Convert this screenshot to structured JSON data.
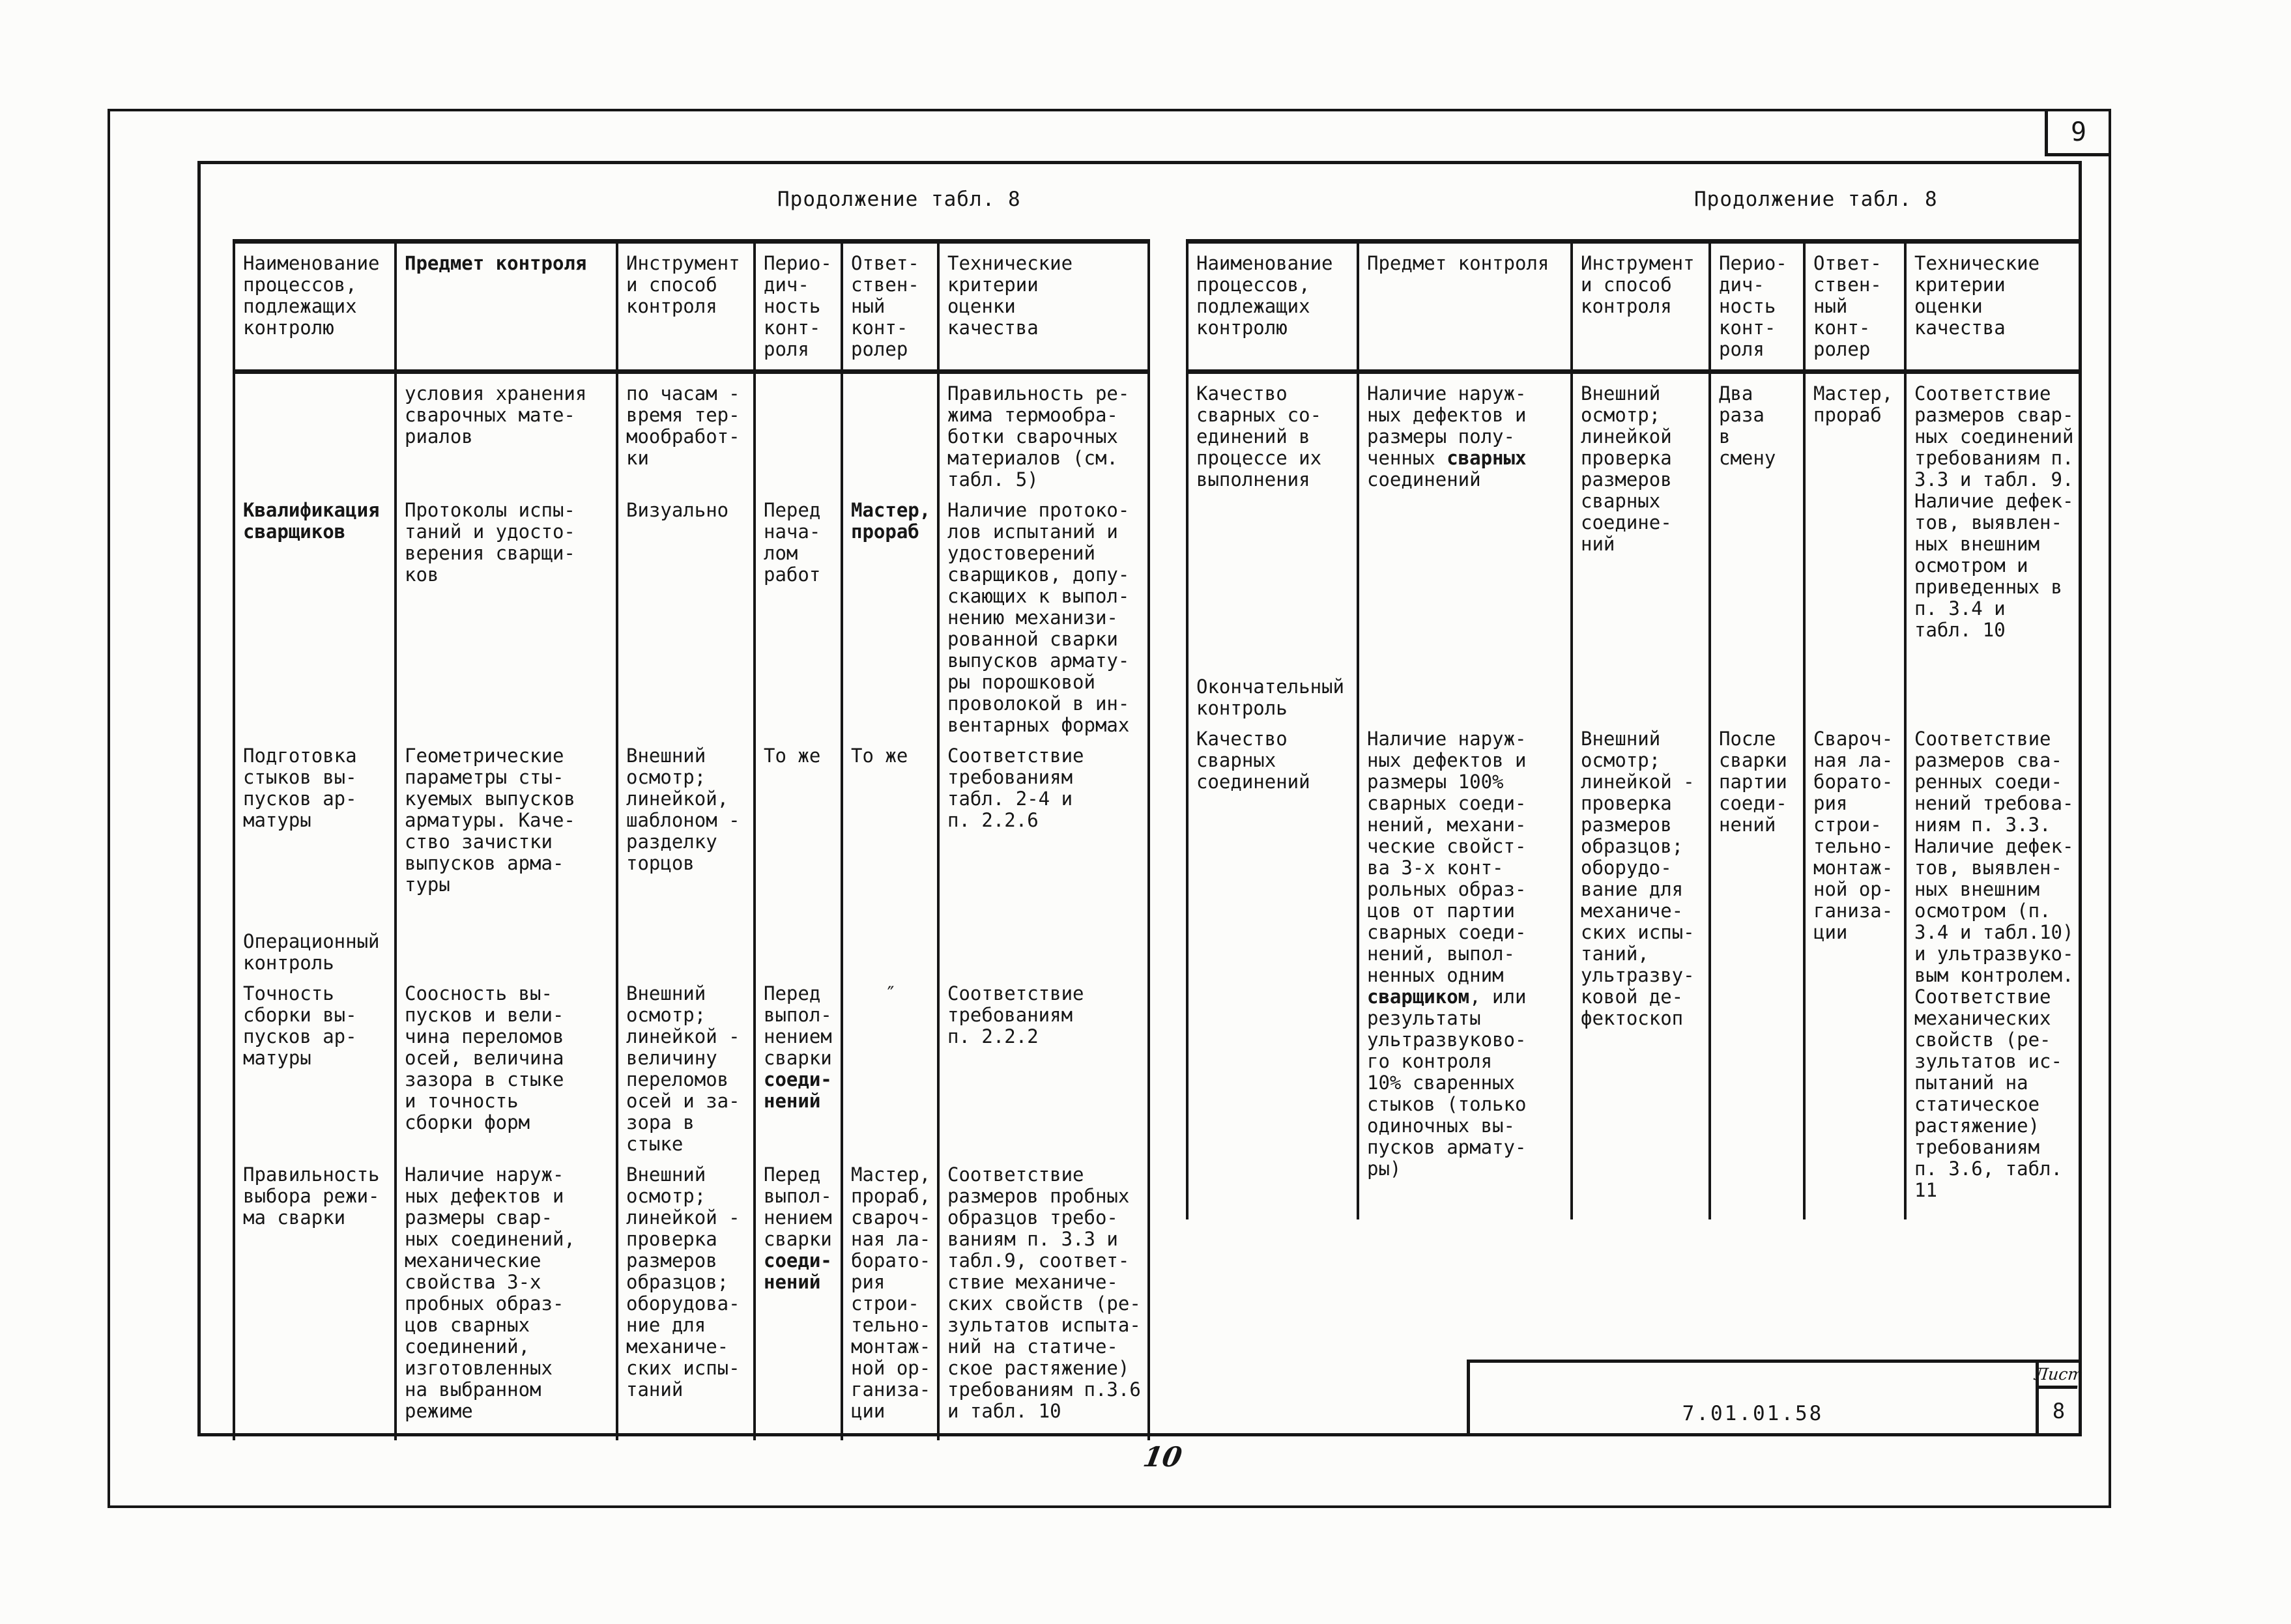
{
  "page": {
    "corner_page_number": "9",
    "bottom_page_number": "10",
    "stamp": {
      "code": "7.01.01.58",
      "sheet_label": "Лист",
      "sheet_number": "8"
    }
  },
  "left_table": {
    "title": "Продолжение табл. 8",
    "header": [
      [
        "Наименование",
        "процессов,",
        "подлежащих",
        "контролю"
      ],
      [
        "**Предмет контроля**"
      ],
      [
        "Инструмент",
        "и способ",
        "контроля"
      ],
      [
        "Перио-",
        "дич-",
        "ность",
        "конт-",
        "роля"
      ],
      [
        "Ответ-",
        "ствен-",
        "ный",
        "конт-",
        "ролер"
      ],
      [
        "Технические",
        "критерии",
        "оценки",
        "качества"
      ]
    ],
    "rows": [
      {
        "cells": [
          [],
          [
            "условия хранения",
            "сварочных мате-",
            "риалов"
          ],
          [
            "по часам -",
            "время тер-",
            "мообработ-",
            "ки"
          ],
          [],
          [],
          [
            "Правильность ре-",
            "жима термообра-",
            "ботки сварочных",
            "материалов (см.",
            "табл. 5)"
          ]
        ]
      },
      {
        "cells": [
          [
            "**Квалификация**",
            "**сварщиков**"
          ],
          [
            "Протоколы испы-",
            "таний и удосто-",
            "верения сварщи-",
            "ков"
          ],
          [
            "Визуально"
          ],
          [
            "Перед",
            "нача-",
            "лом",
            "работ"
          ],
          [
            "**Мастер,**",
            "**прораб**"
          ],
          [
            "Наличие протоко-",
            "лов испытаний и",
            "удостоверений",
            "сварщиков, допу-",
            "скающих к выпол-",
            "нению механизи-",
            "рованной сварки",
            "выпусков армату-",
            "ры порошковой",
            "проволокой в ин-",
            "вентарных формах"
          ]
        ]
      },
      {
        "cells": [
          [
            "Подготовка",
            "стыков вы-",
            "пусков ар-",
            "матуры"
          ],
          [
            "Геометрические",
            "параметры сты-",
            "куемых выпусков",
            "арматуры. Каче-",
            "ство зачистки",
            "выпусков арма-",
            "туры"
          ],
          [
            "Внешний",
            "осмотр;",
            "линейкой,",
            "шаблоном -",
            "разделку",
            "торцов"
          ],
          [
            "То же"
          ],
          [
            "То же"
          ],
          [
            "Соответствие",
            "требованиям",
            "табл. 2-4 и",
            "п. 2.2.6"
          ]
        ]
      },
      {
        "section": true,
        "cells": [
          [
            "Операционный",
            "контроль"
          ],
          [],
          [],
          [],
          [],
          []
        ]
      },
      {
        "cells": [
          [
            "Точность",
            "сборки вы-",
            "пусков ар-",
            "матуры"
          ],
          [
            "Соосность вы-",
            "пусков и вели-",
            "чина переломов",
            "осей, величина",
            "зазора в стыке",
            "и точность",
            "сборки форм"
          ],
          [
            "Внешний",
            "осмотр;",
            "линейкой -",
            "величину",
            "переломов",
            "осей и за-",
            "зора в",
            "стыке"
          ],
          [
            "Перед",
            "выпол-",
            "нением",
            "сварки",
            "**соеди-**",
            "**нений**"
          ],
          {
            "center": true,
            "lines": [
              "″"
            ]
          },
          [
            "Соответствие",
            "требованиям",
            "п. 2.2.2"
          ]
        ]
      },
      {
        "cells": [
          [
            "Правильность",
            "выбора режи-",
            "ма сварки"
          ],
          [
            "Наличие наруж-",
            "ных дефектов и",
            "размеры свар-",
            "ных соединений,",
            "механические",
            "свойства 3-х",
            "пробных образ-",
            "цов сварных",
            "соединений,",
            "изготовленных",
            "на выбранном",
            "режиме"
          ],
          [
            "Внешний",
            "осмотр;",
            "линейкой -",
            "проверка",
            "размеров",
            "образцов;",
            "оборудова-",
            "ние для",
            "механиче-",
            "ских испы-",
            "таний"
          ],
          [
            "Перед",
            "выпол-",
            "нением",
            "сварки",
            "**соеди-**",
            "**нений**"
          ],
          [
            "Мастер,",
            "прораб,",
            "свароч-",
            "ная ла-",
            "борато-",
            "рия",
            "строи-",
            "тельно-",
            "монтаж-",
            "ной ор-",
            "ганиза-",
            "ции"
          ],
          [
            "Соответствие",
            "размеров пробных",
            "образцов требо-",
            "ваниям п. 3.3 и",
            "табл.9, соответ-",
            "ствие механиче-",
            "ских свойств (ре-",
            "зультатов испыта-",
            "ний на статиче-",
            "ское растяжение)",
            "требованиям п.3.6",
            "и табл. 10"
          ]
        ]
      }
    ]
  },
  "right_table": {
    "title": "Продолжение табл. 8",
    "header": [
      [
        "Наименование",
        "процессов,",
        "подлежащих",
        "контролю"
      ],
      [
        "Предмет контроля"
      ],
      [
        "Инструмент",
        "и способ",
        "контроля"
      ],
      [
        "Перио-",
        "дич-",
        "ность",
        "конт-",
        "роля"
      ],
      [
        "Ответ-",
        "ствен-",
        "ный",
        "конт-",
        "ролер"
      ],
      [
        "Технические",
        "критерии",
        "оценки",
        "качества"
      ]
    ],
    "rows": [
      {
        "cells": [
          [
            "Качество",
            "сварных со-",
            "единений в",
            "процессе их",
            "выполнения"
          ],
          [
            "Наличие наруж-",
            "ных дефектов и",
            "размеры полу-",
            "ченных **сварных**",
            "соединений"
          ],
          [
            "Внешний",
            "осмотр;",
            "линейкой",
            "проверка",
            "размеров",
            "сварных",
            "соедине-",
            "ний"
          ],
          [
            "Два",
            "раза",
            "в",
            "смену"
          ],
          [
            "Мастер,",
            "прораб"
          ],
          [
            "Соответствие",
            "размеров свар-",
            "ных соединений",
            "требованиям п.",
            "3.3 и табл. 9.",
            "Наличие дефек-",
            "тов, выявлен-",
            "ных внешним",
            "осмотром и",
            "приведенных в",
            "п. 3.4 и",
            "табл. 10"
          ]
        ]
      },
      {
        "section": true,
        "cells": [
          [
            "Окончательный",
            "контроль"
          ],
          [],
          [],
          [],
          [],
          []
        ]
      },
      {
        "cells": [
          [
            "Качество",
            "сварных",
            "соединений"
          ],
          [
            "Наличие наруж-",
            "ных дефектов и",
            "размеры 100%",
            "сварных соеди-",
            "нений, механи-",
            "ческие свойст-",
            "ва 3-х конт-",
            "рольных образ-",
            "цов от партии",
            "сварных соеди-",
            "нений, выпол-",
            "ненных одним",
            "**сварщиком**, или",
            "результаты",
            "ультразвуково-",
            "го контроля",
            "10% сваренных",
            "стыков (только",
            "одиночных вы-",
            "пусков армату-",
            "ры)"
          ],
          [
            "Внешний",
            "осмотр;",
            "линейкой -",
            "проверка",
            "размеров",
            "образцов;",
            "оборудо-",
            "вание для",
            "механиче-",
            "ских испы-",
            "таний,",
            "ультразву-",
            "ковой де-",
            "фектоскоп"
          ],
          [
            "После",
            "сварки",
            "партии",
            "соеди-",
            "нений"
          ],
          [
            "Свароч-",
            "ная ла-",
            "борато-",
            "рия",
            "строи-",
            "тельно-",
            "монтаж-",
            "ной ор-",
            "ганиза-",
            "ции"
          ],
          [
            "Соответствие",
            "размеров сва-",
            "ренных соеди-",
            "нений требова-",
            "ниям п. 3.3.",
            "Наличие дефек-",
            "тов, выявлен-",
            "ных внешним",
            "осмотром (п.",
            "3.4 и табл.10)",
            "и ультразвуко-",
            "вым контролем.",
            "Соответствие",
            "механических",
            "свойств (ре-",
            "зультатов ис-",
            "пытаний на",
            "статическое",
            "растяжение)",
            "требованиям",
            "п. 3.6, табл.",
            "11"
          ]
        ]
      }
    ]
  }
}
